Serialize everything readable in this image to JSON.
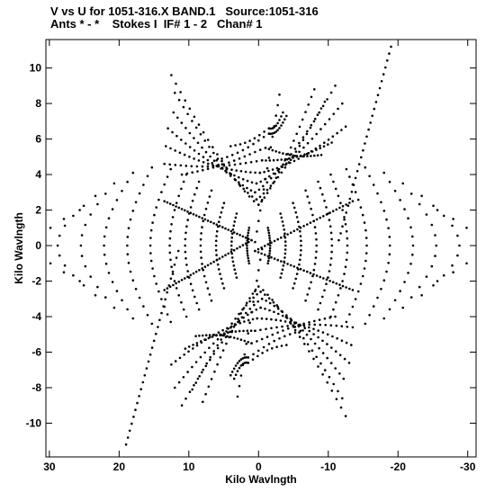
{
  "header": {
    "line1": "V vs U for 1051-316.X BAND.1   Source:1051-316",
    "line2": "Ants * - *    Stokes I  IF# 1 - 2   Chan# 1"
  },
  "chart_data": {
    "type": "scatter",
    "xlabel": "Kilo Wavlngth",
    "ylabel": "Kilo Wavlngth",
    "xlim": [
      30.5,
      -31.2
    ],
    "ylim": [
      -11.9,
      11.6
    ],
    "x_ticks": [
      30,
      20,
      10,
      0,
      -10,
      -20,
      -30
    ],
    "y_ticks": [
      10,
      8,
      6,
      4,
      2,
      0,
      -2,
      -4,
      -6,
      -8,
      -10
    ],
    "x_tick_labels": [
      "30",
      "20",
      "10",
      "0",
      "-10",
      "-20",
      "-30"
    ],
    "y_tick_labels": [
      "10",
      "8",
      "6",
      "4",
      "2",
      "0",
      "-2",
      "-4",
      "-6",
      "-8",
      "-10"
    ],
    "grid": false,
    "marker_color": "#000000",
    "note": "",
    "tracks": [
      {
        "type": "vtop",
        "apex": [
          0,
          2.3
        ],
        "left": [
          12.5,
          9.6
        ],
        "right": [
          -8,
          8.8
        ],
        "n": 38
      },
      {
        "type": "vtop",
        "apex": [
          0.3,
          2.6
        ],
        "left": [
          12,
          8.6
        ],
        "right": [
          -9.5,
          8.1
        ],
        "n": 38
      },
      {
        "type": "vtop",
        "apex": [
          0.5,
          3.0
        ],
        "left": [
          12.2,
          7.5
        ],
        "right": [
          -11,
          9.0
        ],
        "n": 40
      },
      {
        "type": "vtop",
        "apex": [
          0.3,
          3.5
        ],
        "left": [
          13,
          6.6
        ],
        "right": [
          -12,
          8.0
        ],
        "n": 40
      },
      {
        "type": "vtop",
        "apex": [
          -0.2,
          4.1
        ],
        "left": [
          13.3,
          5.6
        ],
        "right": [
          -12.5,
          6.7
        ],
        "n": 40
      },
      {
        "type": "vtop",
        "apex": [
          -0.5,
          4.8
        ],
        "left": [
          13.5,
          4.6
        ],
        "right": [
          -10.5,
          5.8
        ],
        "n": 36
      },
      {
        "type": "vtop",
        "apex": [
          -1,
          5.5
        ],
        "left": [
          11,
          4.0
        ],
        "right": [
          -9,
          5.1
        ],
        "n": 32
      },
      {
        "type": "vtop",
        "apex": [
          -1.5,
          6.3
        ],
        "left": [
          6,
          4.8
        ],
        "right": [
          -4,
          7.3
        ],
        "n": 20
      },
      {
        "type": "vtop",
        "apex": [
          -1.5,
          6.6
        ],
        "left": [
          4,
          5.6
        ],
        "right": [
          -3.5,
          7.5
        ],
        "n": 16
      },
      {
        "type": "vbot",
        "apex": [
          0,
          -2.3
        ],
        "left": [
          8,
          -8.8
        ],
        "right": [
          -12.5,
          -9.6
        ],
        "n": 38
      },
      {
        "type": "vbot",
        "apex": [
          -0.3,
          -2.6
        ],
        "left": [
          9.5,
          -8.1
        ],
        "right": [
          -12,
          -8.6
        ],
        "n": 38
      },
      {
        "type": "vbot",
        "apex": [
          -0.5,
          -3.0
        ],
        "left": [
          11,
          -9.0
        ],
        "right": [
          -12.2,
          -7.5
        ],
        "n": 40
      },
      {
        "type": "vbot",
        "apex": [
          -0.3,
          -3.5
        ],
        "left": [
          12,
          -8.0
        ],
        "right": [
          -13,
          -6.6
        ],
        "n": 40
      },
      {
        "type": "vbot",
        "apex": [
          0.2,
          -4.1
        ],
        "left": [
          12.5,
          -6.7
        ],
        "right": [
          -13.3,
          -5.6
        ],
        "n": 40
      },
      {
        "type": "vbot",
        "apex": [
          0.5,
          -4.8
        ],
        "left": [
          10.5,
          -5.8
        ],
        "right": [
          -13.5,
          -4.6
        ],
        "n": 36
      },
      {
        "type": "vbot",
        "apex": [
          1,
          -5.5
        ],
        "left": [
          9,
          -5.1
        ],
        "right": [
          -11,
          -4.0
        ],
        "n": 32
      },
      {
        "type": "vbot",
        "apex": [
          1.5,
          -6.3
        ],
        "left": [
          4,
          -7.3
        ],
        "right": [
          -6,
          -4.8
        ],
        "n": 20
      },
      {
        "type": "vbot",
        "apex": [
          1.5,
          -6.6
        ],
        "left": [
          3.5,
          -7.5
        ],
        "right": [
          -4,
          -5.6
        ],
        "n": 16
      },
      {
        "type": "arc",
        "start": [
          0.5,
          -0.3
        ],
        "end": [
          -13.5,
          2.5
        ],
        "n": 30
      },
      {
        "type": "arc",
        "start": [
          0.5,
          -0.3
        ],
        "end": [
          -13.5,
          -2.5
        ],
        "n": 30
      },
      {
        "type": "arc",
        "start": [
          1,
          0.3
        ],
        "end": [
          13.5,
          2.5
        ],
        "n": 30
      },
      {
        "type": "arc",
        "start": [
          1,
          0.3
        ],
        "end": [
          13.5,
          -2.5
        ],
        "n": 30
      },
      {
        "type": "lobe_right",
        "x0": -1.5,
        "ymax": 1.0,
        "n": 14
      },
      {
        "type": "lobe_right",
        "x0": -3.5,
        "ymax": 1.8,
        "n": 16
      },
      {
        "type": "lobe_right",
        "x0": -5.5,
        "ymax": 2.4,
        "n": 18
      },
      {
        "type": "lobe_right",
        "x0": -7.5,
        "ymax": 3.1,
        "n": 18
      },
      {
        "type": "lobe_right",
        "x0": -9.5,
        "ymax": 3.6,
        "n": 20
      },
      {
        "type": "lobe_right",
        "x0": -11.5,
        "ymax": 4.0,
        "n": 20
      },
      {
        "type": "lobe_right",
        "x0": -14,
        "ymax": 4.3,
        "n": 20
      },
      {
        "type": "lobe_right",
        "x0": -17,
        "ymax": 4.4,
        "n": 18
      },
      {
        "type": "lobe_right",
        "x0": -20,
        "ymax": 4.1,
        "n": 16
      },
      {
        "type": "lobe_right",
        "x0": -23,
        "ymax": 3.5,
        "n": 12
      },
      {
        "type": "lobe_right",
        "x0": -26,
        "ymax": 2.8,
        "n": 10
      },
      {
        "type": "lobe_right",
        "x0": -28.5,
        "ymax": 2.0,
        "n": 8
      },
      {
        "type": "lobe_left",
        "x0": 1.5,
        "ymax": 1.0,
        "n": 14
      },
      {
        "type": "lobe_left",
        "x0": 3.5,
        "ymax": 1.8,
        "n": 16
      },
      {
        "type": "lobe_left",
        "x0": 5.5,
        "ymax": 2.4,
        "n": 18
      },
      {
        "type": "lobe_left",
        "x0": 7.5,
        "ymax": 3.1,
        "n": 18
      },
      {
        "type": "lobe_left",
        "x0": 9.5,
        "ymax": 3.6,
        "n": 20
      },
      {
        "type": "lobe_left",
        "x0": 11.5,
        "ymax": 4.0,
        "n": 20
      },
      {
        "type": "lobe_left",
        "x0": 14,
        "ymax": 4.3,
        "n": 20
      },
      {
        "type": "lobe_left",
        "x0": 17,
        "ymax": 4.4,
        "n": 18
      },
      {
        "type": "lobe_left",
        "x0": 20,
        "ymax": 4.1,
        "n": 16
      },
      {
        "type": "lobe_left",
        "x0": 23,
        "ymax": 3.5,
        "n": 12
      },
      {
        "type": "lobe_left",
        "x0": 26,
        "ymax": 2.8,
        "n": 10
      },
      {
        "type": "lobe_left",
        "x0": 28.5,
        "ymax": 2.0,
        "n": 8
      },
      {
        "type": "line",
        "start": [
          -11.5,
          0.3
        ],
        "end": [
          -19,
          11.2
        ],
        "n": 28
      },
      {
        "type": "line",
        "start": [
          11.5,
          -0.3
        ],
        "end": [
          19,
          -11.2
        ],
        "n": 28
      },
      {
        "type": "line",
        "start": [
          0.5,
          0.2
        ],
        "end": [
          -3,
          8.5
        ],
        "n": 14
      },
      {
        "type": "line",
        "start": [
          -0.5,
          -0.2
        ],
        "end": [
          3,
          -8.5
        ],
        "n": 14
      }
    ]
  }
}
